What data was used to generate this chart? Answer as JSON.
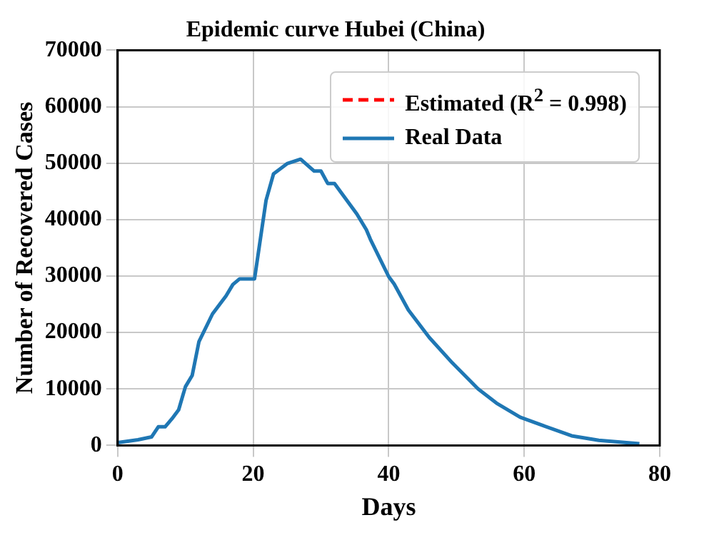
{
  "chart_data": {
    "type": "line",
    "title": "Epidemic curve Hubei (China)",
    "xlabel": "Days",
    "ylabel": "Number of Recovered Cases",
    "xlim": [
      0,
      80
    ],
    "xticks": [
      0,
      20,
      40,
      60,
      80
    ],
    "ylim": [
      0,
      70000
    ],
    "yticks": [
      0,
      10000,
      20000,
      30000,
      40000,
      50000,
      60000,
      70000
    ],
    "grid": true,
    "legend": "top right",
    "series": [
      {
        "name": "Estimated (R$^{2}$ = 0.998)",
        "color": "#ff0000",
        "line_style": "dashed"
      },
      {
        "name": "Real Data",
        "color": "#1f77b4",
        "line_style": "solid",
        "x": [
          0,
          3,
          5,
          6,
          7,
          8,
          9,
          10,
          11,
          12,
          14,
          16,
          17,
          18,
          20.2,
          21.9,
          23,
          25,
          27,
          29,
          30,
          31,
          32,
          35.3,
          36.7,
          37.3,
          40,
          40.8,
          42.9,
          46,
          49.4,
          53.2,
          55.9,
          59.4,
          62.8,
          67,
          71,
          77
        ],
        "values": [
          500,
          1000,
          1500,
          3300,
          3300,
          4700,
          6300,
          10400,
          12400,
          18400,
          23300,
          26500,
          28500,
          29500,
          29500,
          43400,
          48100,
          49900,
          50700,
          48600,
          48600,
          46400,
          46400,
          41000,
          38200,
          36500,
          29900,
          28600,
          24000,
          19100,
          14600,
          10000,
          7500,
          5000,
          3500,
          1700,
          900,
          300
        ]
      }
    ]
  }
}
